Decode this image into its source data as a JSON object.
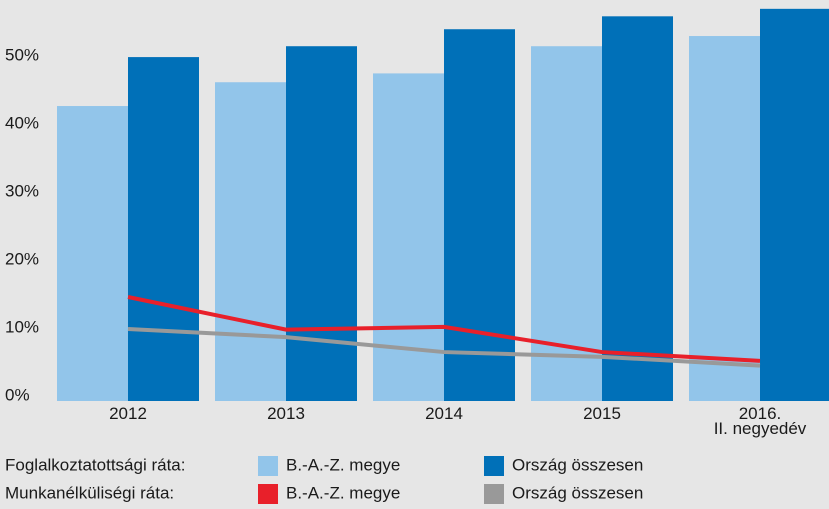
{
  "chart_data": {
    "type": "bar",
    "categories": [
      "2012",
      "2013",
      "2014",
      "2015",
      "2016.\nII. negyedév"
    ],
    "series": [
      {
        "name": "B.-A.-Z. megye",
        "type": "bar",
        "color": "#92c5ea",
        "values": [
          43.4,
          46.9,
          48.2,
          52.2,
          53.7
        ]
      },
      {
        "name": "Ország összesen",
        "type": "bar",
        "color": "#0070b8",
        "values": [
          50.6,
          52.2,
          54.7,
          56.6,
          57.7
        ]
      },
      {
        "name": "B.-A.-Z. megye",
        "type": "line",
        "color": "#e8202a",
        "values": [
          15.3,
          10.5,
          10.9,
          7.2,
          5.9
        ]
      },
      {
        "name": "Ország összesen",
        "type": "line",
        "color": "#999999",
        "values": [
          10.6,
          9.4,
          7.2,
          6.5,
          5.2
        ]
      }
    ],
    "legend_titles": {
      "bar": "Foglalkoztatottsági ráta:",
      "line": "Munkanélküliségi ráta:"
    },
    "ylim": [
      0,
      59
    ],
    "yticks": [
      {
        "value": 0,
        "label": "0%"
      },
      {
        "value": 10,
        "label": "10%"
      },
      {
        "value": 20,
        "label": "20%"
      },
      {
        "value": 30,
        "label": "30%"
      },
      {
        "value": 40,
        "label": "40%"
      },
      {
        "value": 50,
        "label": "50%"
      }
    ]
  }
}
